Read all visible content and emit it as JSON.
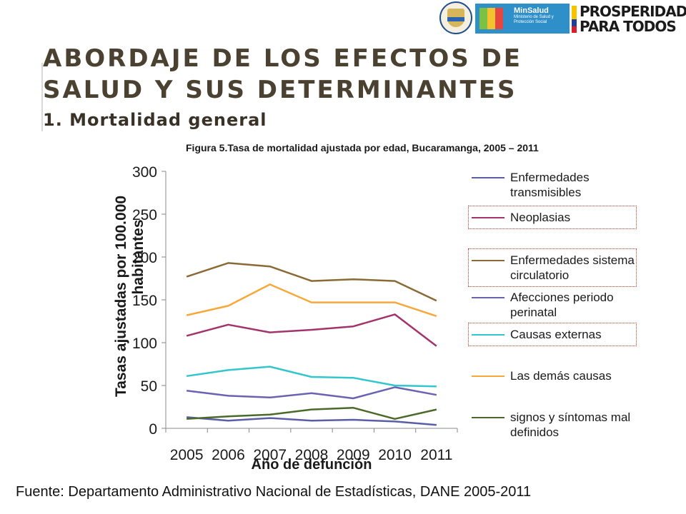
{
  "slide": {
    "title": "ABORDAJE DE LOS EFECTOS DE SALUD Y SUS DETERMINANTES",
    "subtitle": "1. Mortalidad general",
    "source": "Fuente: Departamento Administrativo Nacional de Estadísticas, DANE 2005-2011"
  },
  "logos": {
    "minsalud_brand": "MinSalud",
    "minsalud_desc": "Ministerio de Salud y Protección Social",
    "prosperidad": [
      "PROSPERIDAD",
      "PARA TODOS"
    ]
  },
  "chart_data": {
    "type": "line",
    "title": "Figura 5.Tasa de mortalidad ajustada por edad, Bucaramanga, 2005 – 2011",
    "xlabel": "Año de defunción",
    "ylabel": "Tasas ajustadas por 100.000 habitantes",
    "x": [
      "2005",
      "2006",
      "2007",
      "2008",
      "2009",
      "2010",
      "2011"
    ],
    "ylim": [
      0,
      300
    ],
    "yticks": [
      0,
      50,
      100,
      150,
      200,
      250,
      300
    ],
    "legend_position": "right",
    "series": [
      {
        "name": "Enfermedades transmisibles",
        "color": "#5b5ea6",
        "values": [
          13,
          9,
          12,
          9,
          10,
          8,
          4
        ]
      },
      {
        "name": "Neoplasias",
        "color": "#a3336b",
        "values": [
          108,
          121,
          112,
          115,
          119,
          133,
          96
        ]
      },
      {
        "name": "Enfermedades sistema circulatorio",
        "color": "#8b6a35",
        "values": [
          177,
          193,
          189,
          172,
          174,
          172,
          149
        ]
      },
      {
        "name": "Afecciones periodo perinatal",
        "color": "#6a63b0",
        "values": [
          44,
          38,
          36,
          41,
          35,
          48,
          39
        ]
      },
      {
        "name": "Causas externas",
        "color": "#33c6cc",
        "values": [
          61,
          68,
          72,
          60,
          59,
          50,
          49
        ]
      },
      {
        "name": "Las demás causas",
        "color": "#f7a83b",
        "values": [
          132,
          143,
          168,
          147,
          147,
          147,
          131
        ]
      },
      {
        "name": "signos y síntomas mal definidos",
        "color": "#4a6a2a",
        "values": [
          11,
          14,
          16,
          22,
          24,
          11,
          22
        ]
      }
    ],
    "highlighted_legend": [
      "Neoplasias",
      "Enfermedades sistema circulatorio",
      "Causas externas"
    ]
  }
}
